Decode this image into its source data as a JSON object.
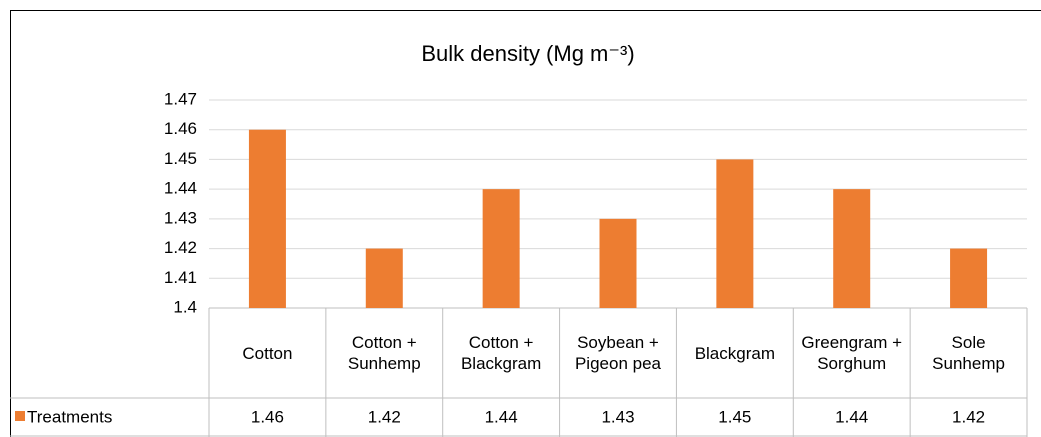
{
  "chart_data": {
    "type": "bar",
    "title": "Bulk density (Mg m⁻³)",
    "categories": [
      "Cotton",
      "Cotton + Sunhemp",
      "Cotton + Blackgram",
      "Soybean + Pigeon pea",
      "Blackgram",
      "Greengram + Sorghum",
      "Sole Sunhemp"
    ],
    "series": [
      {
        "name": "Treatments",
        "color": "#ed7d31",
        "values": [
          1.46,
          1.42,
          1.44,
          1.43,
          1.45,
          1.44,
          1.42
        ]
      }
    ],
    "ylim": [
      1.4,
      1.47
    ],
    "yticks": [
      1.4,
      1.41,
      1.42,
      1.43,
      1.44,
      1.45,
      1.46,
      1.47
    ],
    "grid": true,
    "data_table": true
  }
}
